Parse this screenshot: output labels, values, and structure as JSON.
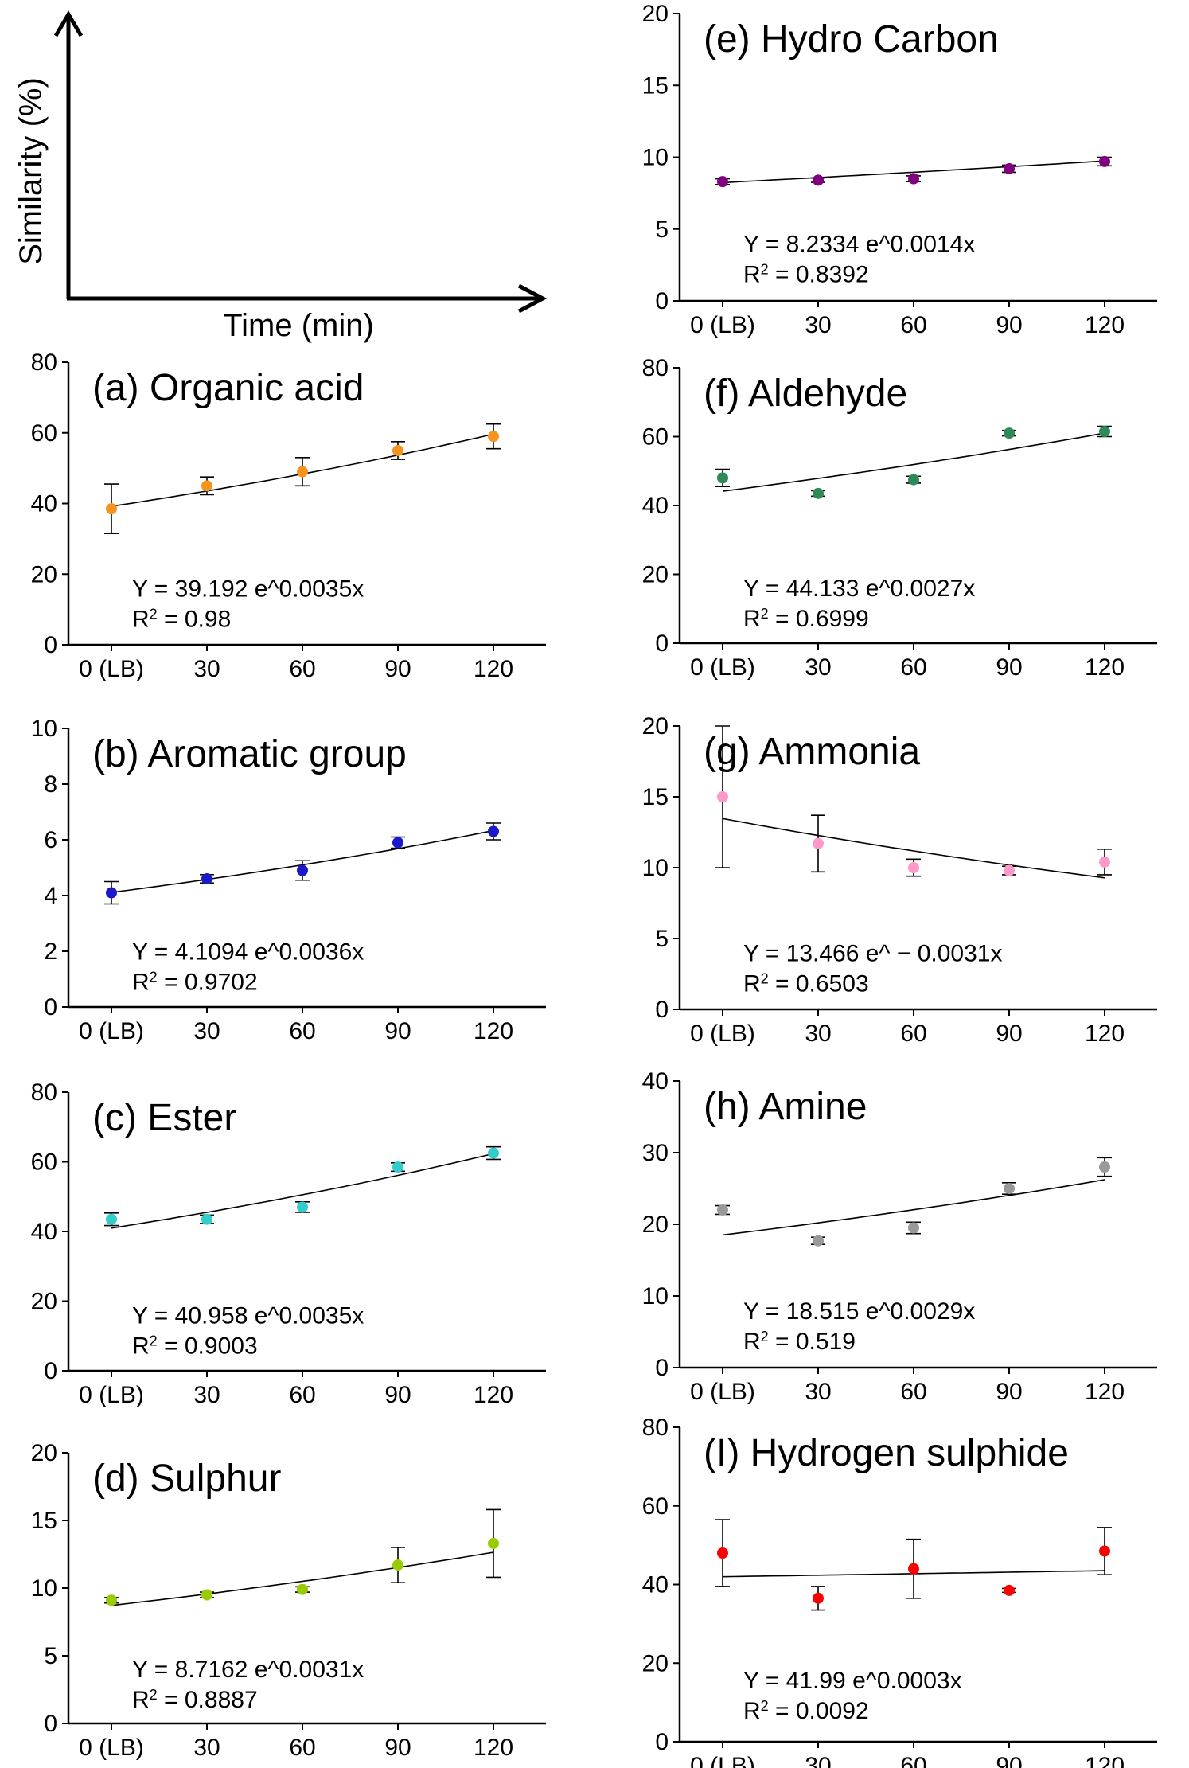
{
  "legend_panel": {
    "ylabel": "Similarity (%)",
    "xlabel": "Time (min)"
  },
  "x_tick_labels": [
    "0 (LB)",
    "30",
    "60",
    "90",
    "120"
  ],
  "chart_data": [
    {
      "id": "a",
      "type": "scatter",
      "title": "(a) Organic acid",
      "color": "#f7941d",
      "x": [
        0,
        30,
        60,
        90,
        120
      ],
      "y": [
        38.5,
        45,
        49,
        55,
        59
      ],
      "err": [
        7,
        2.5,
        4,
        2.5,
        3.5
      ],
      "ylim": [
        0,
        80
      ],
      "yticks": [
        0,
        20,
        40,
        60,
        80
      ],
      "fit": {
        "a": 39.192,
        "b": 0.0035
      },
      "equation": "Y = 39.192 e^0.0035x",
      "r2_label": "R",
      "r2_sup": "2",
      "r2_value": "= 0.98"
    },
    {
      "id": "b",
      "type": "scatter",
      "title": "(b) Aromatic group",
      "color": "#1a1acc",
      "x": [
        0,
        30,
        60,
        90,
        120
      ],
      "y": [
        4.1,
        4.6,
        4.9,
        5.9,
        6.3
      ],
      "err": [
        0.4,
        0.15,
        0.35,
        0.2,
        0.3
      ],
      "ylim": [
        0,
        10
      ],
      "yticks": [
        0,
        2,
        4,
        6,
        8,
        10
      ],
      "fit": {
        "a": 4.1094,
        "b": 0.0036
      },
      "equation": "Y = 4.1094 e^0.0036x",
      "r2_label": "R",
      "r2_sup": "2",
      "r2_value": "= 0.9702"
    },
    {
      "id": "c",
      "type": "scatter",
      "title": "(c) Ester",
      "color": "#33cccc",
      "x": [
        0,
        30,
        60,
        90,
        120
      ],
      "y": [
        43.5,
        43.5,
        47,
        58.5,
        62.5
      ],
      "err": [
        1.8,
        1.2,
        1.5,
        1.2,
        1.8
      ],
      "ylim": [
        0,
        80
      ],
      "yticks": [
        0,
        20,
        40,
        60,
        80
      ],
      "fit": {
        "a": 40.958,
        "b": 0.0035
      },
      "equation": "Y = 40.958 e^0.0035x",
      "r2_label": "R",
      "r2_sup": "2",
      "r2_value": "= 0.9003"
    },
    {
      "id": "d",
      "type": "scatter",
      "title": "(d) Sulphur",
      "color": "#99cc00",
      "x": [
        0,
        30,
        60,
        90,
        120
      ],
      "y": [
        9.1,
        9.5,
        9.9,
        11.7,
        13.3
      ],
      "err": [
        0.2,
        0.2,
        0.2,
        1.3,
        2.5
      ],
      "ylim": [
        0,
        20
      ],
      "yticks": [
        0,
        5,
        10,
        15,
        20
      ],
      "fit": {
        "a": 8.7162,
        "b": 0.0031
      },
      "equation": "Y = 8.7162 e^0.0031x",
      "r2_label": "R",
      "r2_sup": "2",
      "r2_value": "= 0.8887"
    },
    {
      "id": "e",
      "type": "scatter",
      "title": "(e) Hydro Carbon",
      "color": "#800080",
      "x": [
        0,
        30,
        60,
        90,
        120
      ],
      "y": [
        8.3,
        8.4,
        8.5,
        9.2,
        9.7
      ],
      "err": [
        0.2,
        0.15,
        0.2,
        0.25,
        0.3
      ],
      "ylim": [
        0,
        20
      ],
      "yticks": [
        0,
        5,
        10,
        15,
        20
      ],
      "fit": {
        "a": 8.2334,
        "b": 0.0014
      },
      "equation": "Y = 8.2334 e^0.0014x",
      "r2_label": "R",
      "r2_sup": "2",
      "r2_value": "= 0.8392"
    },
    {
      "id": "f",
      "type": "scatter",
      "title": "(f) Aldehyde",
      "color": "#2e8b57",
      "x": [
        0,
        30,
        60,
        90,
        120
      ],
      "y": [
        48,
        43.5,
        47.5,
        61,
        61.5
      ],
      "err": [
        2.5,
        0.8,
        1,
        0.8,
        1.5
      ],
      "ylim": [
        0,
        80
      ],
      "yticks": [
        0,
        20,
        40,
        60,
        80
      ],
      "fit": {
        "a": 44.133,
        "b": 0.0027
      },
      "equation": "Y = 44.133 e^0.0027x",
      "r2_label": "R",
      "r2_sup": "2",
      "r2_value": "= 0.6999"
    },
    {
      "id": "g",
      "type": "scatter",
      "title": "(g) Ammonia",
      "color": "#ff99cc",
      "x": [
        0,
        30,
        60,
        90,
        120
      ],
      "y": [
        15,
        11.7,
        10,
        9.8,
        10.4
      ],
      "err": [
        5,
        2,
        0.6,
        0.3,
        0.9
      ],
      "ylim": [
        0,
        20
      ],
      "yticks": [
        0,
        5,
        10,
        15,
        20
      ],
      "fit": {
        "a": 13.466,
        "b": -0.0031
      },
      "equation": "Y = 13.466 e^ − 0.0031x",
      "r2_label": "R",
      "r2_sup": "2",
      "r2_value": "= 0.6503"
    },
    {
      "id": "h",
      "type": "scatter",
      "title": "(h) Amine",
      "color": "#999999",
      "x": [
        0,
        30,
        60,
        90,
        120
      ],
      "y": [
        22,
        17.7,
        19.5,
        25,
        28
      ],
      "err": [
        0.6,
        0.5,
        0.8,
        0.8,
        1.3
      ],
      "ylim": [
        0,
        40
      ],
      "yticks": [
        0,
        10,
        20,
        30,
        40
      ],
      "fit": {
        "a": 18.515,
        "b": 0.0029
      },
      "equation": "Y = 18.515 e^0.0029x",
      "r2_label": "R",
      "r2_sup": "2",
      "r2_value": "= 0.519"
    },
    {
      "id": "i",
      "type": "scatter",
      "title": "(I) Hydrogen sulphide",
      "color": "#ff0000",
      "x": [
        0,
        30,
        60,
        90,
        120
      ],
      "y": [
        48,
        36.5,
        44,
        38.5,
        48.5
      ],
      "err": [
        8.5,
        3,
        7.5,
        0.5,
        6
      ],
      "ylim": [
        0,
        80
      ],
      "yticks": [
        0,
        20,
        40,
        60,
        80
      ],
      "fit": {
        "a": 41.99,
        "b": 0.0003
      },
      "equation": "Y = 41.99 e^0.0003x",
      "r2_label": "R",
      "r2_sup": "2",
      "r2_value": "= 0.0092"
    }
  ]
}
